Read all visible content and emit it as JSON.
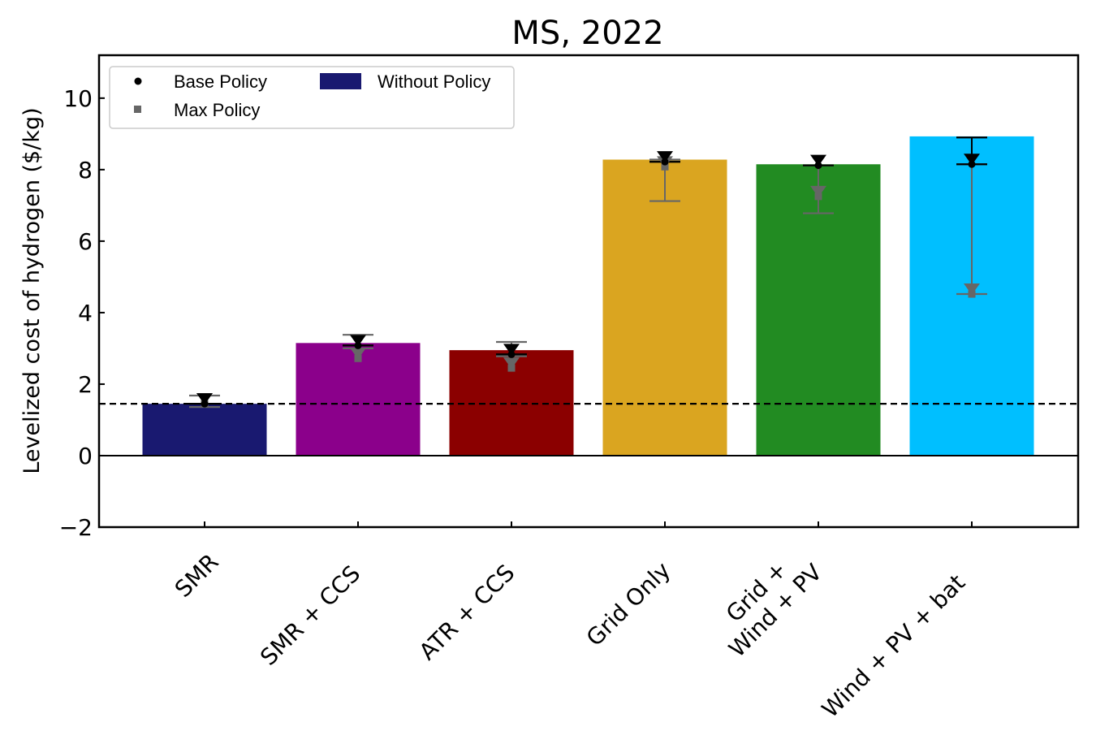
{
  "chart_data": {
    "type": "bar",
    "title": "MS, 2022",
    "ylabel": "Levelized  cost of hydrogen ($/kg)",
    "ylim": [
      -2,
      11.2
    ],
    "yticks": [
      -2,
      0,
      2,
      4,
      6,
      8,
      10
    ],
    "ytick_labels": [
      "−2",
      "0",
      "2",
      "4",
      "6",
      "8",
      "10"
    ],
    "categories": [
      {
        "lines": [
          "SMR"
        ]
      },
      {
        "lines": [
          "SMR + CCS"
        ]
      },
      {
        "lines": [
          "ATR + CCS"
        ]
      },
      {
        "lines": [
          "Grid Only"
        ]
      },
      {
        "lines": [
          "Grid +",
          "Wind + PV"
        ]
      },
      {
        "lines": [
          "Wind + PV + bat"
        ]
      }
    ],
    "bar_colors": [
      "#191970",
      "#8b008b",
      "#8b0000",
      "#daa520",
      "#228b22",
      "#00bfff"
    ],
    "without_policy": [
      1.45,
      3.15,
      2.95,
      8.28,
      8.15,
      8.93
    ],
    "base_policy": [
      1.45,
      3.08,
      2.83,
      8.22,
      8.12,
      8.15
    ],
    "base_error_range": [
      [
        1.45,
        1.45
      ],
      [
        3.08,
        3.08
      ],
      [
        2.83,
        2.83
      ],
      [
        8.22,
        8.22
      ],
      [
        8.12,
        8.12
      ],
      [
        8.15,
        8.9
      ]
    ],
    "max_policy": [
      1.45,
      2.72,
      2.45,
      8.08,
      7.25,
      4.52
    ],
    "max_error_range": [
      [
        1.36,
        1.68
      ],
      [
        3.0,
        3.38
      ],
      [
        2.78,
        3.18
      ],
      [
        7.12,
        8.28
      ],
      [
        6.78,
        8.12
      ],
      [
        4.52,
        8.15
      ]
    ],
    "reference_line": 1.45,
    "legend": {
      "position": "upper-left",
      "entries": [
        {
          "label": "Base Policy",
          "marker": "dot",
          "color": "#000000"
        },
        {
          "label": "Max Policy",
          "marker": "square",
          "color": "#666666"
        },
        {
          "label": "Without Policy",
          "marker": "patch",
          "color": "#191970"
        }
      ]
    },
    "colors": {
      "base_marker": "#000000",
      "max_marker": "#666666",
      "axis": "#000000"
    }
  }
}
